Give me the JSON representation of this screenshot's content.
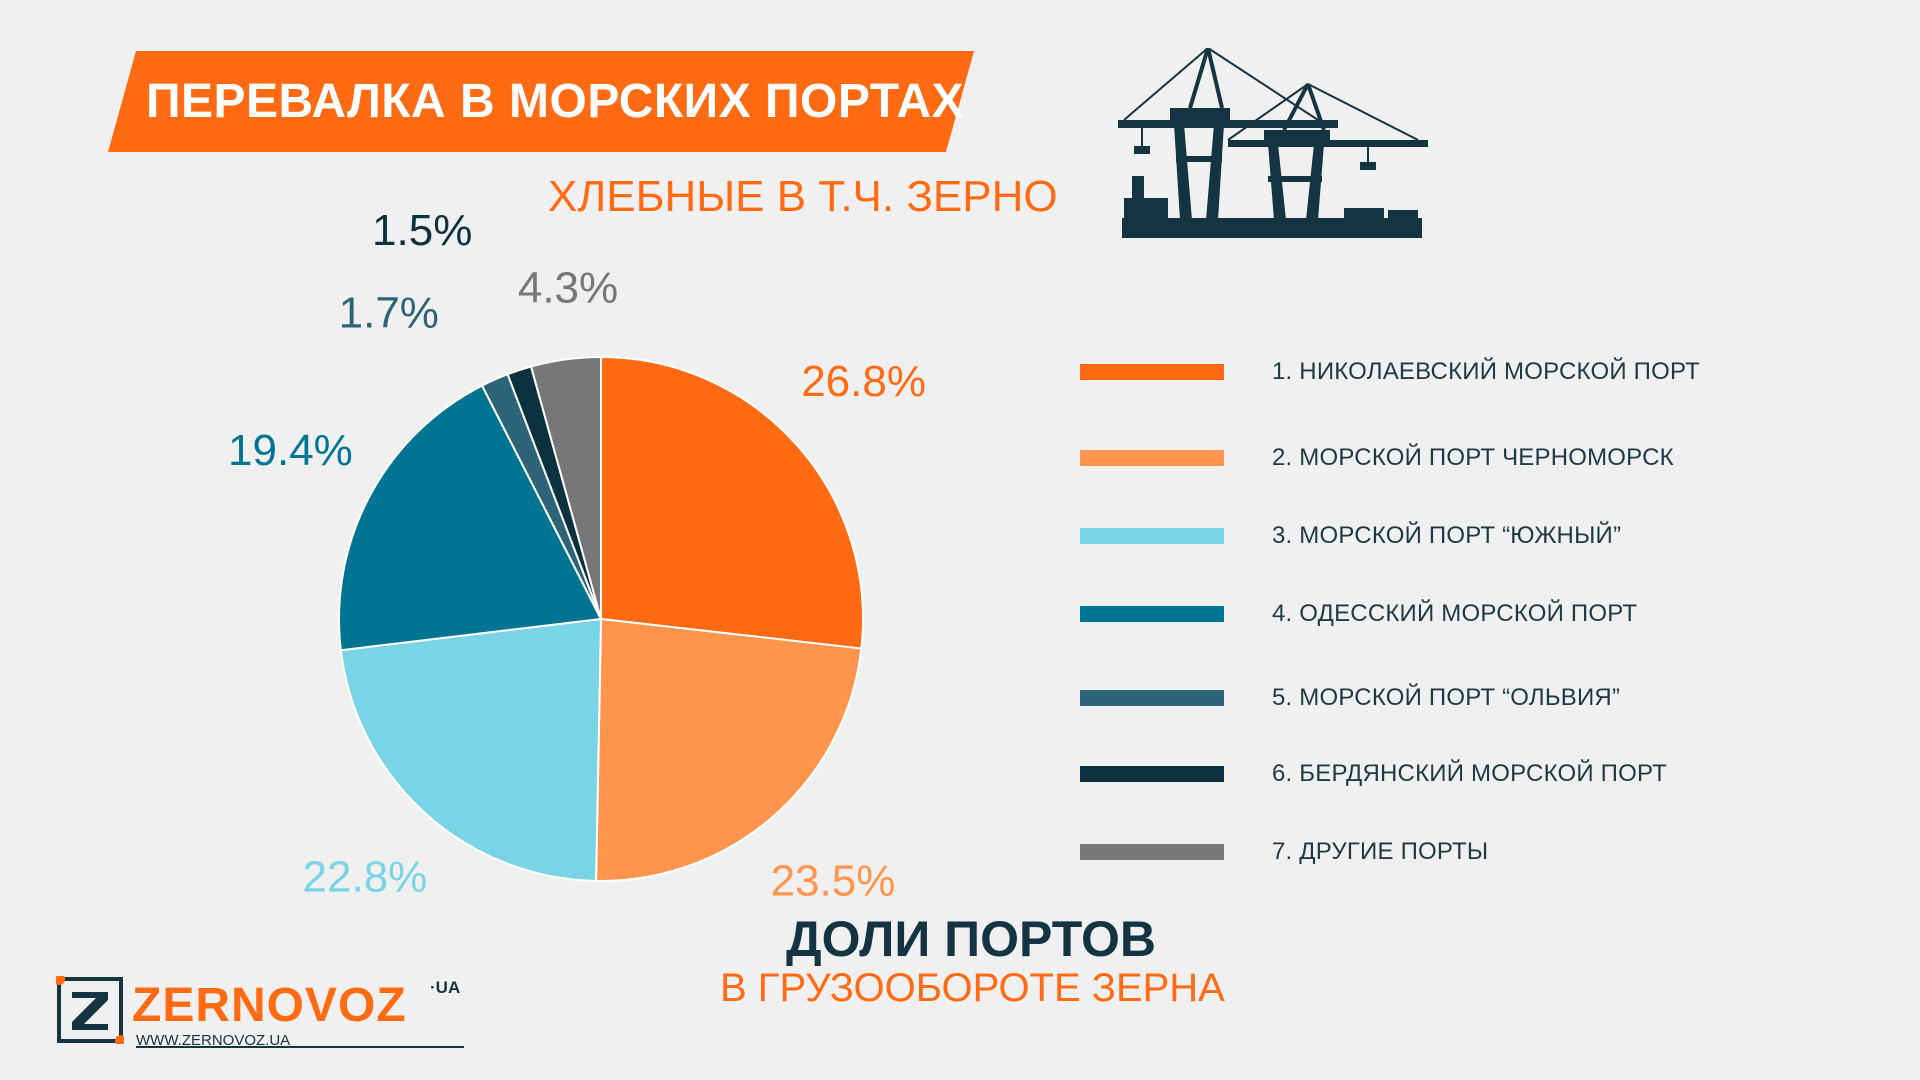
{
  "header": {
    "title": "ПЕРЕВАЛКА В МОРСКИХ ПОРТАХ",
    "subtitle": "ХЛЕБНЫЕ В Т.Ч. ЗЕРНО"
  },
  "footer": {
    "title": "ДОЛИ ПОРТОВ",
    "subtitle": "В ГРУЗООБОРОТЕ ЗЕРНА"
  },
  "logo": {
    "name": "ZERNOVOZ",
    "suffix": "·UA",
    "url": "WWW.ZERNOVOZ.UA"
  },
  "icons": {
    "crane": "port-crane-icon",
    "logo_mark": "z-logo-icon"
  },
  "colors": {
    "accent": "#ff6a13",
    "dark": "#133440",
    "background": "#f0f0f0"
  },
  "chart_data": {
    "type": "pie",
    "categories": [
      "1. НИКОЛАЕВСКИЙ МОРСКОЙ ПОРТ",
      "2. МОРСКОЙ ПОРТ ЧЕРНОМОРСК",
      "3. МОРСКОЙ ПОРТ “ЮЖНЫЙ”",
      "4. ОДЕССКИЙ МОРСКОЙ ПОРТ",
      "5. МОРСКОЙ ПОРТ “ОЛЬВИЯ”",
      "6. БЕРДЯНСКИЙ МОРСКОЙ ПОРТ",
      "7. ДРУГИЕ ПОРТЫ"
    ],
    "values": [
      26.8,
      23.5,
      22.8,
      19.4,
      1.7,
      1.5,
      4.3
    ],
    "labels": [
      "26.8%",
      "23.5%",
      "22.8%",
      "19.4%",
      "1.7%",
      "1.5%",
      "4.3%"
    ],
    "colors": [
      "#ff6a13",
      "#ff944d",
      "#79d4e6",
      "#007593",
      "#2d6477",
      "#0c3240",
      "#777777"
    ],
    "legend_position": "right"
  }
}
